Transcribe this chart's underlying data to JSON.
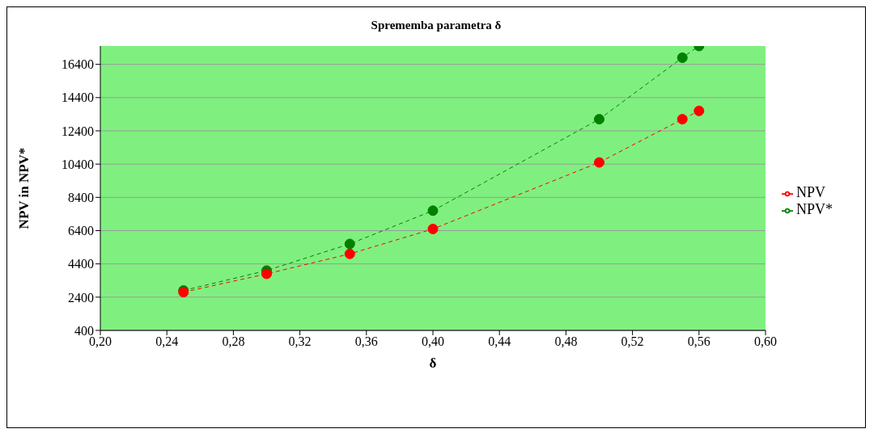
{
  "chart_data": {
    "type": "line",
    "title": "Sprememba parametra δ",
    "xlabel": "δ",
    "ylabel": "NPV in NPV*",
    "x": [
      0.25,
      0.3,
      0.35,
      0.4,
      0.5,
      0.55,
      0.56
    ],
    "series": [
      {
        "name": "NPV*",
        "color": "#008000",
        "values": [
          2800,
          4000,
          5600,
          7600,
          13100,
          16800,
          17500
        ]
      },
      {
        "name": "NPV",
        "color": "#ff0000",
        "values": [
          2700,
          3800,
          5000,
          6500,
          10500,
          13100,
          13600
        ]
      }
    ],
    "xlim": [
      0.2,
      0.6
    ],
    "xticks": [
      {
        "value": 0.2,
        "label": "0,20"
      },
      {
        "value": 0.24,
        "label": "0,24"
      },
      {
        "value": 0.28,
        "label": "0,28"
      },
      {
        "value": 0.32,
        "label": "0,32"
      },
      {
        "value": 0.36,
        "label": "0,36"
      },
      {
        "value": 0.4,
        "label": "0,40"
      },
      {
        "value": 0.44,
        "label": "0,44"
      },
      {
        "value": 0.48,
        "label": "0,48"
      },
      {
        "value": 0.52,
        "label": "0,52"
      },
      {
        "value": 0.56,
        "label": "0,56"
      },
      {
        "value": 0.6,
        "label": "0,60"
      }
    ],
    "ylim": [
      400,
      17500
    ],
    "yticks": [
      400,
      2400,
      4400,
      6400,
      8400,
      10400,
      12400,
      14400,
      16400
    ],
    "grid": "y",
    "legend": "right",
    "marker": "circle",
    "line_style": "dashed"
  }
}
